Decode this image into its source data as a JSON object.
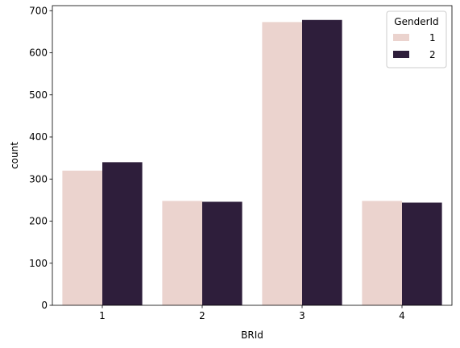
{
  "chart_data": {
    "type": "bar",
    "title": "",
    "xlabel": "BRId",
    "ylabel": "count",
    "categories": [
      "1",
      "2",
      "3",
      "4"
    ],
    "series": [
      {
        "name": "1",
        "values": [
          320,
          248,
          673,
          248
        ],
        "color": "#ebd3ce"
      },
      {
        "name": "2",
        "values": [
          340,
          246,
          678,
          244
        ],
        "color": "#2e1e3b"
      }
    ],
    "ylim": [
      0,
      712
    ],
    "yticks": [
      0,
      100,
      200,
      300,
      400,
      500,
      600,
      700
    ],
    "grid": false,
    "legend": {
      "title": "GenderId",
      "placement": "top-right"
    }
  }
}
